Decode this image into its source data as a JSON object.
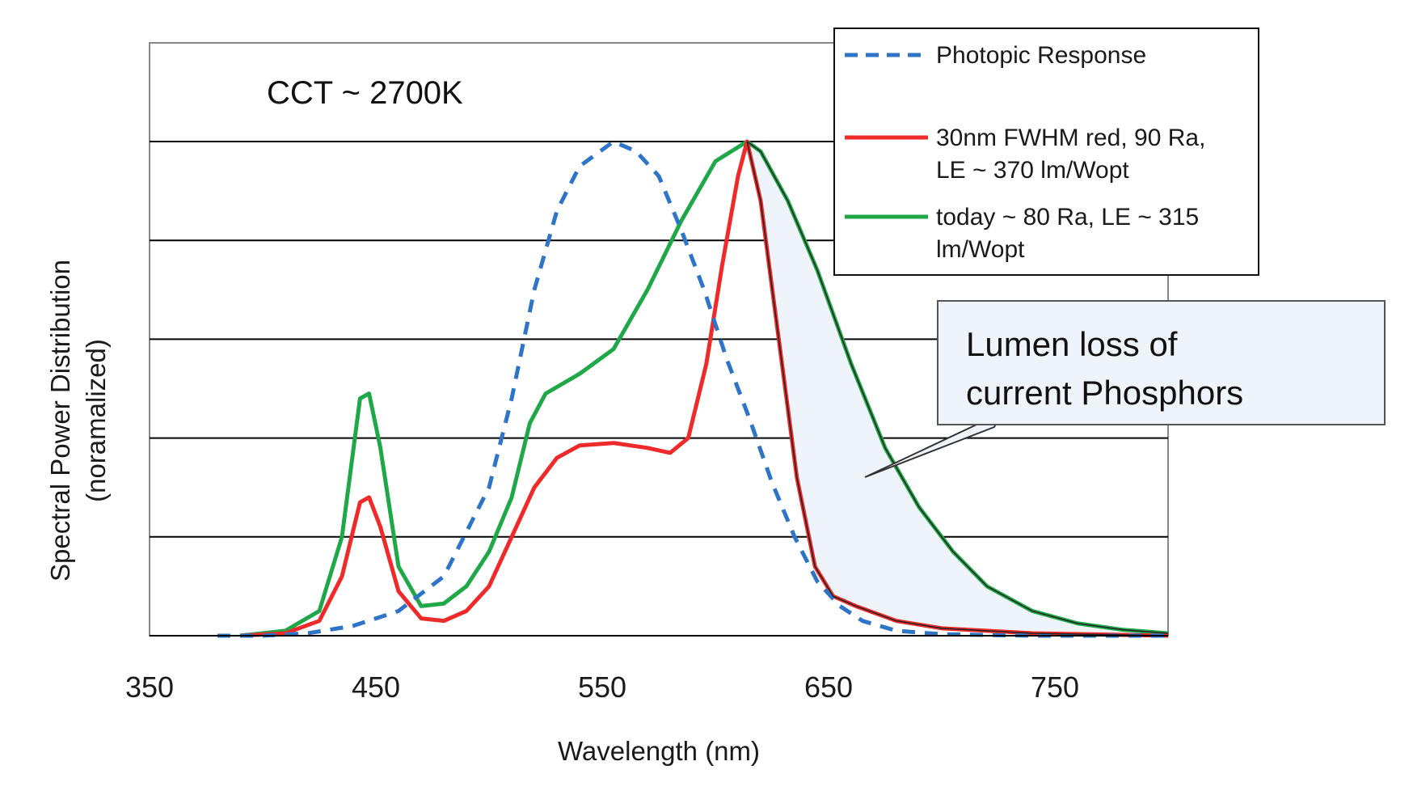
{
  "chart_data": {
    "type": "line",
    "annotation": "CCT ~ 2700K",
    "xlabel": "Wavelength (nm)",
    "ylabel_line1": "Spectral Power Distribution",
    "ylabel_line2": "(noramalized)",
    "xlim": [
      350,
      800
    ],
    "ylim": [
      0,
      1.0
    ],
    "x_ticks": [
      350,
      450,
      550,
      650,
      750
    ],
    "x_tick_labels": [
      "350",
      "450",
      "550",
      "650",
      "750"
    ],
    "y_gridlines": [
      0.2,
      0.4,
      0.6,
      0.8,
      1.0
    ],
    "grid": true,
    "legend_position": "top-right",
    "series": [
      {
        "name": "Photopic Response",
        "style": "dashed",
        "color": "#2e75c8",
        "points": [
          [
            380,
            0
          ],
          [
            400,
            0.0
          ],
          [
            420,
            0.005
          ],
          [
            440,
            0.02
          ],
          [
            460,
            0.05
          ],
          [
            480,
            0.12
          ],
          [
            500,
            0.3
          ],
          [
            510,
            0.48
          ],
          [
            520,
            0.7
          ],
          [
            530,
            0.86
          ],
          [
            540,
            0.95
          ],
          [
            555,
            1.0
          ],
          [
            565,
            0.98
          ],
          [
            575,
            0.93
          ],
          [
            585,
            0.82
          ],
          [
            595,
            0.7
          ],
          [
            605,
            0.56
          ],
          [
            615,
            0.44
          ],
          [
            625,
            0.31
          ],
          [
            635,
            0.2
          ],
          [
            645,
            0.11
          ],
          [
            655,
            0.06
          ],
          [
            665,
            0.03
          ],
          [
            680,
            0.01
          ],
          [
            700,
            0.003
          ],
          [
            740,
            0
          ],
          [
            800,
            0
          ]
        ]
      },
      {
        "name": "30nm FWHM red, 90 Ra, LE ~ 370 lm/Wopt",
        "legend_line1": "30nm FWHM red, 90 Ra,",
        "legend_line2": "LE ~ 370 lm/Wopt",
        "style": "solid",
        "color": "#ee2a2a",
        "points": [
          [
            390,
            0
          ],
          [
            410,
            0.005
          ],
          [
            425,
            0.03
          ],
          [
            435,
            0.12
          ],
          [
            443,
            0.27
          ],
          [
            447,
            0.28
          ],
          [
            452,
            0.22
          ],
          [
            460,
            0.09
          ],
          [
            470,
            0.035
          ],
          [
            480,
            0.03
          ],
          [
            490,
            0.05
          ],
          [
            500,
            0.1
          ],
          [
            510,
            0.2
          ],
          [
            520,
            0.3
          ],
          [
            530,
            0.36
          ],
          [
            540,
            0.385
          ],
          [
            555,
            0.39
          ],
          [
            570,
            0.38
          ],
          [
            580,
            0.37
          ],
          [
            588,
            0.4
          ],
          [
            596,
            0.55
          ],
          [
            603,
            0.75
          ],
          [
            610,
            0.93
          ],
          [
            614,
            1.0
          ],
          [
            620,
            0.88
          ],
          [
            628,
            0.6
          ],
          [
            636,
            0.32
          ],
          [
            644,
            0.14
          ],
          [
            652,
            0.08
          ],
          [
            662,
            0.06
          ],
          [
            680,
            0.03
          ],
          [
            700,
            0.015
          ],
          [
            740,
            0.005
          ],
          [
            800,
            0.0
          ]
        ]
      },
      {
        "name": "today ~ 80 Ra, LE ~ 315 lm/Wopt",
        "legend_line1": "today ~ 80 Ra, LE ~ 315",
        "legend_line2": "lm/Wopt",
        "style": "solid",
        "color": "#1fa848",
        "points": [
          [
            390,
            0
          ],
          [
            410,
            0.01
          ],
          [
            425,
            0.05
          ],
          [
            435,
            0.2
          ],
          [
            443,
            0.48
          ],
          [
            447,
            0.49
          ],
          [
            452,
            0.38
          ],
          [
            460,
            0.14
          ],
          [
            470,
            0.06
          ],
          [
            480,
            0.065
          ],
          [
            490,
            0.1
          ],
          [
            500,
            0.17
          ],
          [
            510,
            0.28
          ],
          [
            518,
            0.43
          ],
          [
            525,
            0.49
          ],
          [
            540,
            0.53
          ],
          [
            555,
            0.58
          ],
          [
            570,
            0.7
          ],
          [
            585,
            0.84
          ],
          [
            600,
            0.96
          ],
          [
            614,
            1.0
          ],
          [
            620,
            0.98
          ],
          [
            632,
            0.88
          ],
          [
            645,
            0.74
          ],
          [
            660,
            0.55
          ],
          [
            675,
            0.38
          ],
          [
            690,
            0.26
          ],
          [
            705,
            0.17
          ],
          [
            720,
            0.1
          ],
          [
            740,
            0.05
          ],
          [
            760,
            0.025
          ],
          [
            780,
            0.012
          ],
          [
            800,
            0.005
          ]
        ]
      }
    ],
    "callout": {
      "line1": "Lumen loss of",
      "line2": "current Phosphors"
    },
    "colors": {
      "shade": "#eef4f9",
      "grid": "#000000",
      "photopic": "#2e75c8",
      "red": "#ee2a2a",
      "green": "#1fa848"
    }
  }
}
